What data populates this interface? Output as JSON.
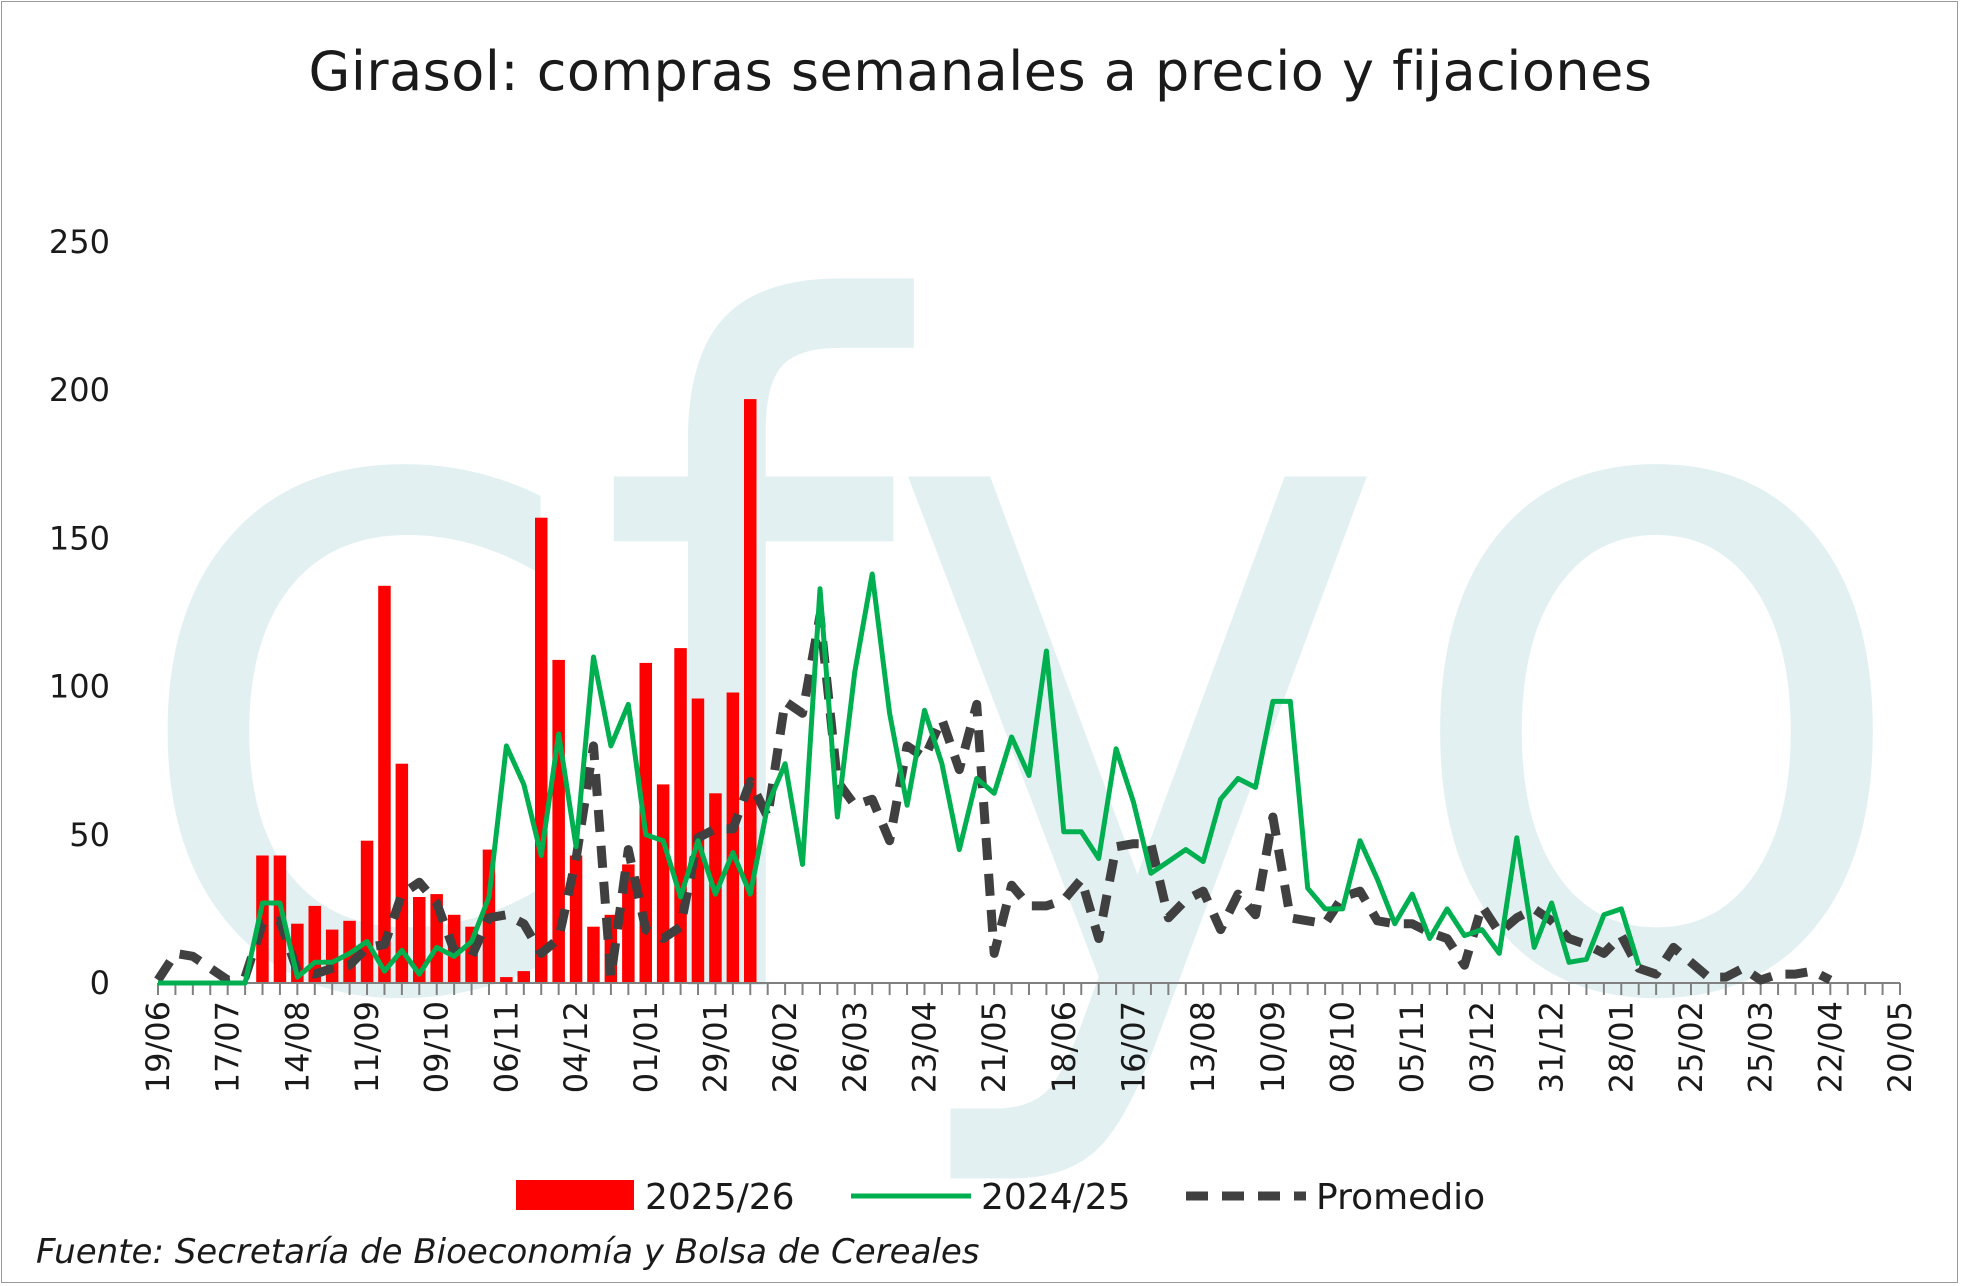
{
  "title": "Girasol: compras semanales a precio y fijaciones",
  "source": "Fuente: Secretaría de Bioeconomía y Bolsa de Cereales",
  "watermark": "cfyo",
  "colors": {
    "bar": "#ff0000",
    "line": "#00b050",
    "avg": "#404040",
    "watermark": "#e3f0f2"
  },
  "chart_data": {
    "type": "bar",
    "ylim": [
      0,
      250
    ],
    "yticks": [
      0,
      50,
      100,
      150,
      200,
      250
    ],
    "x_range": [
      "19/06",
      "20/05"
    ],
    "xtick_labels": [
      "19/06",
      "17/07",
      "14/08",
      "11/09",
      "09/10",
      "06/11",
      "04/12",
      "01/01",
      "29/01",
      "26/02",
      "26/03",
      "23/04",
      "21/05",
      "18/06",
      "16/07",
      "13/08",
      "10/09",
      "08/10",
      "05/11",
      "03/12",
      "31/12",
      "28/01",
      "25/02",
      "25/03",
      "22/04",
      "20/05"
    ],
    "grid": false,
    "legend_position": "bottom",
    "series": [
      {
        "name": "2025/26",
        "type": "bar",
        "values": [
          0,
          0,
          0,
          0,
          0,
          0,
          43,
          43,
          20,
          26,
          18,
          21,
          48,
          134,
          74,
          29,
          30,
          23,
          19,
          45,
          2,
          4,
          157,
          109,
          43,
          19,
          23,
          40,
          108,
          67,
          113,
          96,
          64,
          98,
          197
        ]
      },
      {
        "name": "2024/25",
        "type": "line",
        "values": [
          0,
          0,
          0,
          0,
          0,
          0,
          27,
          27,
          2,
          7,
          7,
          10,
          14,
          4,
          11,
          3,
          12,
          9,
          14,
          29,
          80,
          67,
          43,
          84,
          46,
          110,
          80,
          94,
          50,
          48,
          29,
          48,
          30,
          44,
          30,
          60,
          74,
          40,
          133,
          56,
          105,
          138,
          91,
          60,
          92,
          74,
          45,
          69,
          64,
          83,
          70,
          112,
          51,
          51,
          42,
          79,
          61,
          37,
          41,
          45,
          41,
          62,
          69,
          66,
          95,
          95,
          32,
          25,
          25,
          48,
          35,
          20,
          30,
          15,
          25,
          16,
          18,
          10,
          49,
          12,
          27,
          7,
          8,
          23,
          25,
          6
        ]
      },
      {
        "name": "Promedio",
        "type": "line",
        "style": "dashed",
        "values": [
          1,
          10,
          9,
          5,
          1,
          2,
          20,
          21,
          4,
          3,
          5,
          6,
          12,
          13,
          30,
          34,
          27,
          11,
          9,
          22,
          23,
          20,
          10,
          15,
          42,
          80,
          2,
          45,
          18,
          15,
          19,
          49,
          52,
          52,
          68,
          56,
          95,
          91,
          124,
          68,
          60,
          62,
          48,
          80,
          76,
          89,
          72,
          94,
          10,
          33,
          26,
          26,
          28,
          35,
          15,
          46,
          47,
          47,
          22,
          28,
          31,
          18,
          30,
          23,
          56,
          22,
          21,
          20,
          29,
          31,
          21,
          20,
          20,
          17,
          15,
          6,
          26,
          17,
          22,
          25,
          21,
          15,
          13,
          10,
          16,
          5,
          3,
          12,
          7,
          2,
          2,
          5,
          1,
          3,
          3,
          4,
          1
        ]
      }
    ]
  },
  "legend": [
    {
      "label": "2025/26",
      "kind": "bar"
    },
    {
      "label": "2024/25",
      "kind": "line"
    },
    {
      "label": "Promedio",
      "kind": "dashed"
    }
  ]
}
